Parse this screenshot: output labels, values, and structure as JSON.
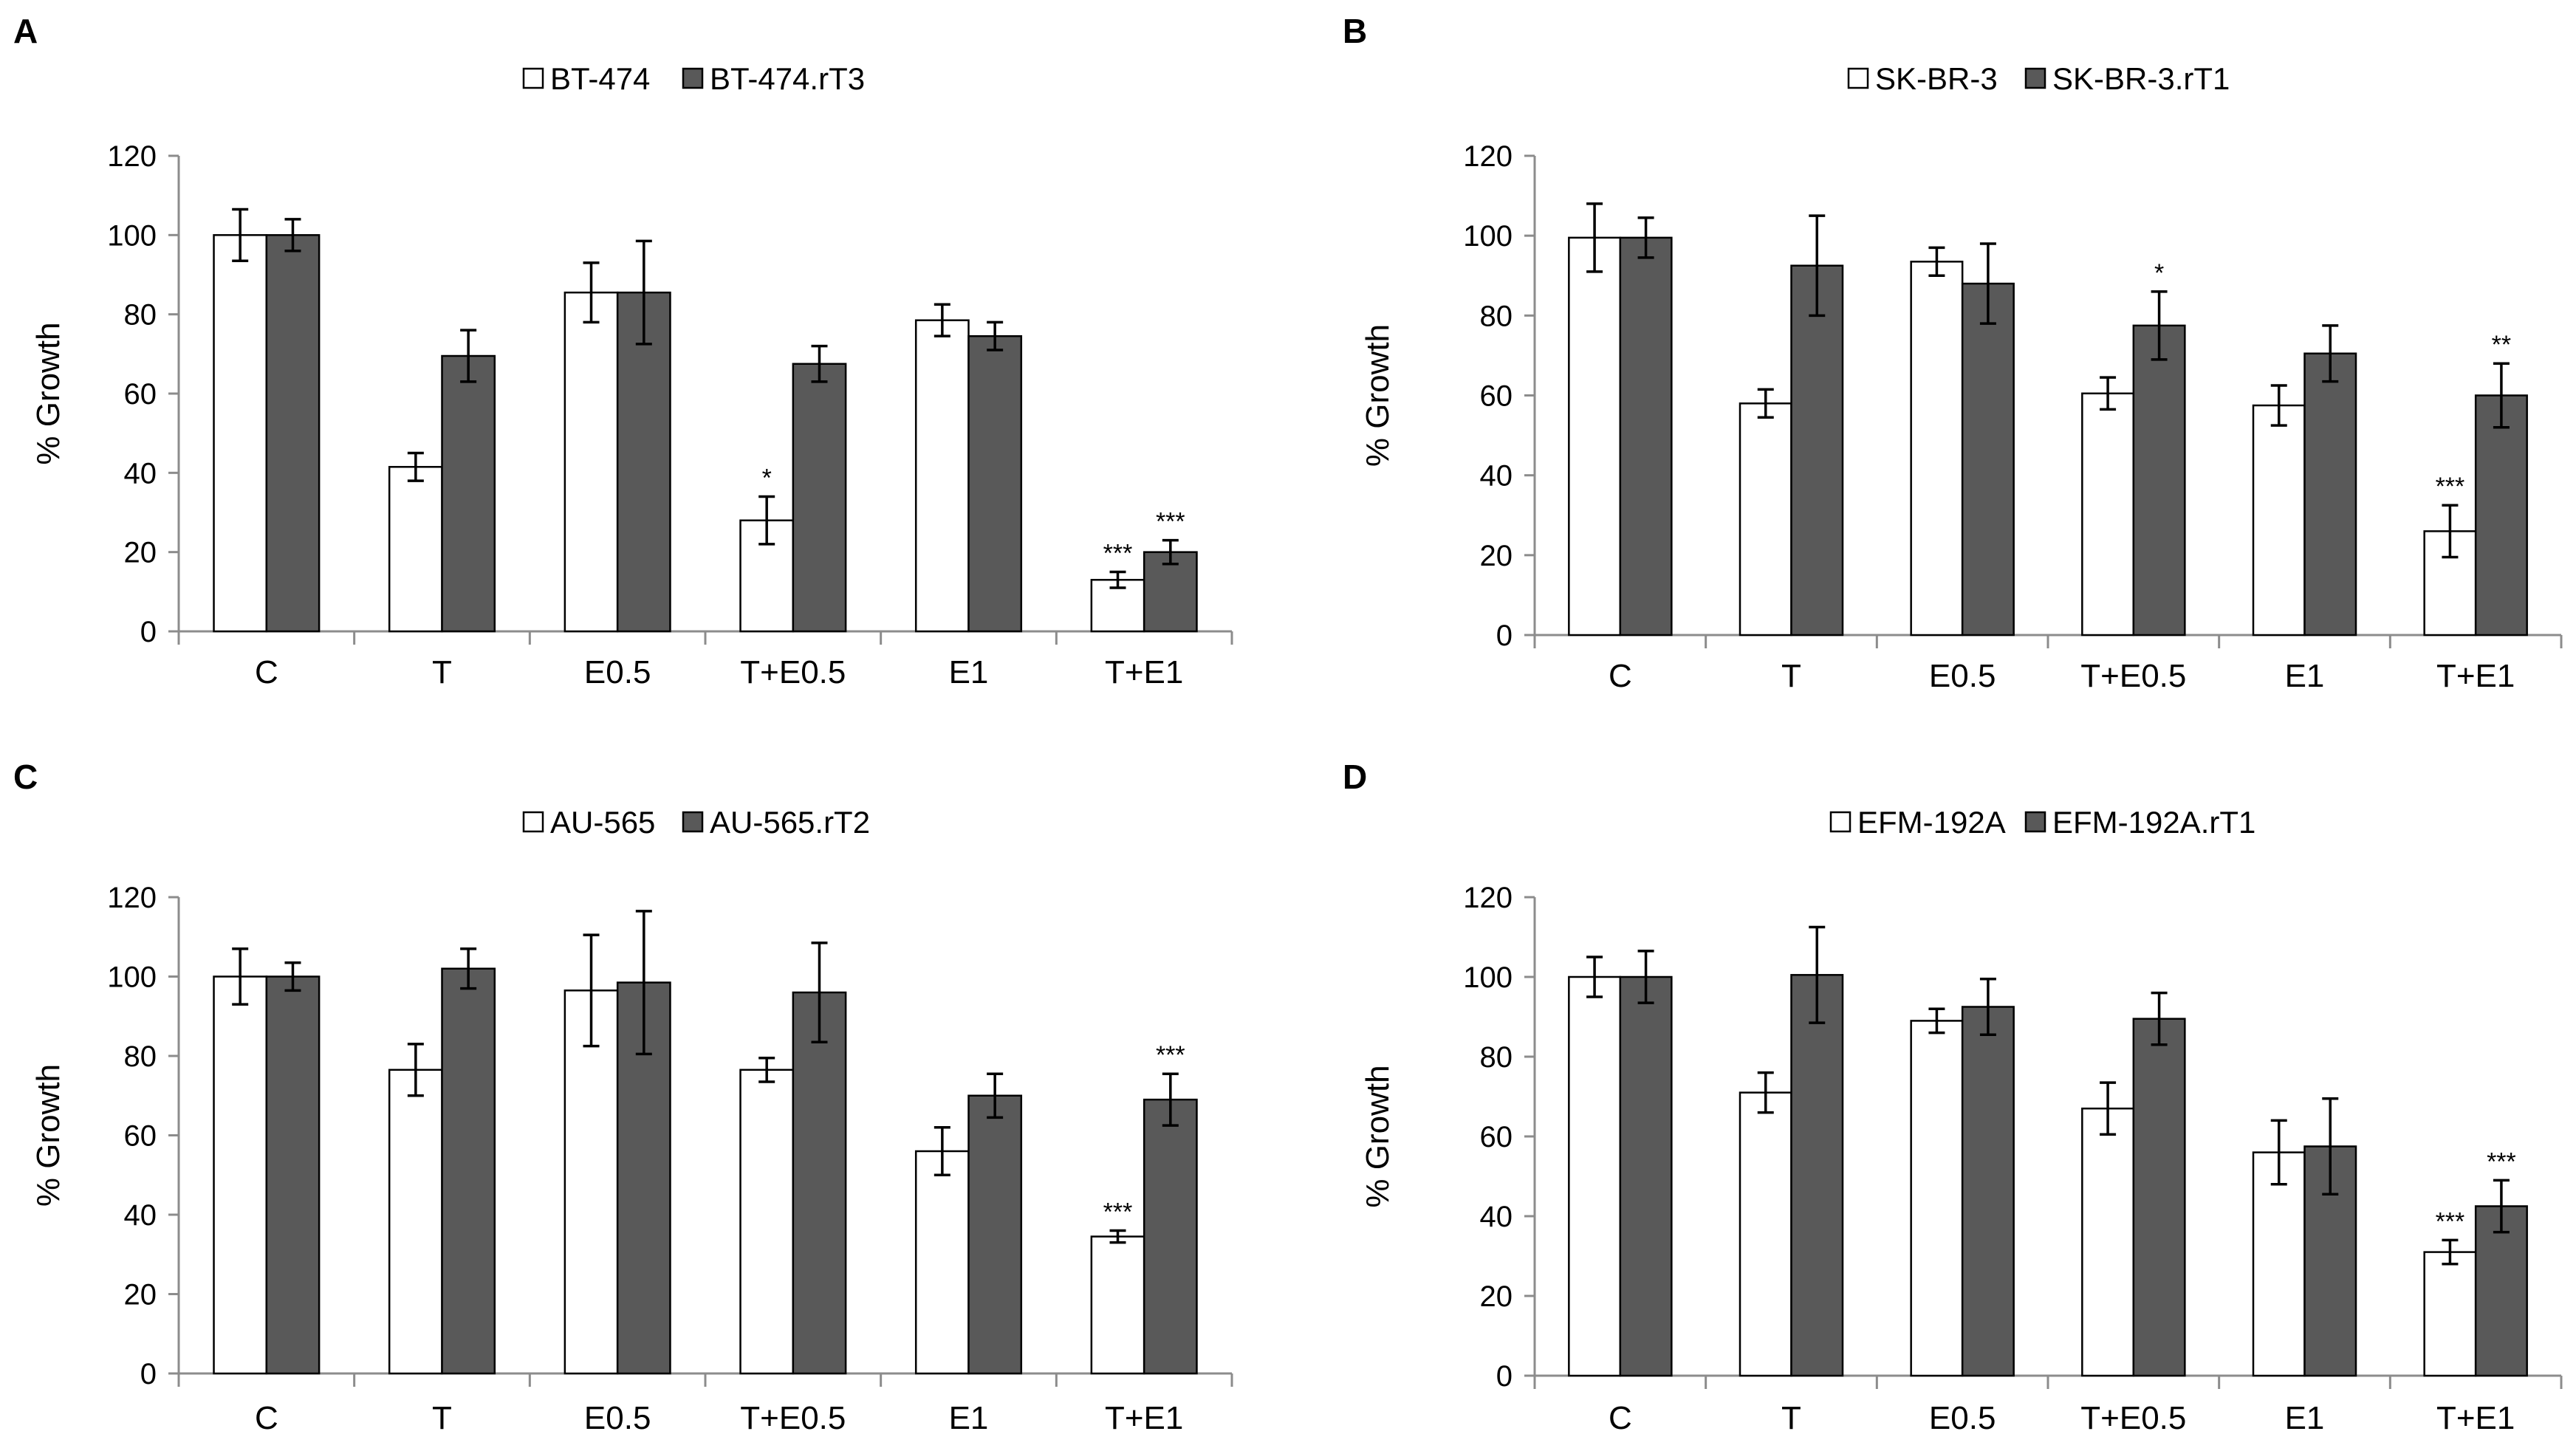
{
  "chart_data": [
    {
      "panel": "A",
      "type": "bar",
      "categories": [
        "C",
        "T",
        "E0.5",
        "T+E0.5",
        "E1",
        "T+E1"
      ],
      "ylabel": "% Growth",
      "xlabel": "",
      "ylim": [
        0,
        120
      ],
      "yticks": [
        "0",
        "20",
        "40",
        "60",
        "80",
        "100",
        "120"
      ],
      "legend_position": "top-center",
      "series": [
        {
          "name": "BT-474",
          "color": "#ffffff",
          "values": [
            100,
            41.5,
            85.5,
            28,
            78.5,
            13
          ],
          "errors": [
            6.5,
            3.5,
            7.5,
            6,
            4,
            2
          ],
          "annotations": [
            "",
            "",
            "",
            "*",
            "",
            "***"
          ]
        },
        {
          "name": "BT-474.rT3",
          "color": "#595959",
          "values": [
            100,
            69.5,
            85.5,
            67.5,
            74.5,
            20
          ],
          "errors": [
            4,
            6.5,
            13,
            4.5,
            3.5,
            3
          ],
          "annotations": [
            "",
            "",
            "",
            "",
            "",
            "***"
          ]
        }
      ]
    },
    {
      "panel": "B",
      "type": "bar",
      "categories": [
        "C",
        "T",
        "E0.5",
        "T+E0.5",
        "E1",
        "T+E1"
      ],
      "ylabel": "% Growth",
      "xlabel": "",
      "ylim": [
        0,
        120
      ],
      "yticks": [
        "0",
        "20",
        "40",
        "60",
        "80",
        "100",
        "120"
      ],
      "legend_position": "top-center",
      "series": [
        {
          "name": "SK-BR-3",
          "color": "#ffffff",
          "values": [
            99.5,
            58,
            93.5,
            60.5,
            57.5,
            26
          ],
          "errors": [
            8.5,
            3.5,
            3.5,
            4,
            5,
            6.5
          ],
          "annotations": [
            "",
            "",
            "",
            "",
            "",
            "***"
          ]
        },
        {
          "name": "SK-BR-3.rT1",
          "color": "#595959",
          "values": [
            99.5,
            92.5,
            88,
            77.5,
            70.5,
            60
          ],
          "errors": [
            5,
            12.5,
            10,
            8.5,
            7,
            8
          ],
          "annotations": [
            "",
            "",
            "",
            "*",
            "",
            "**"
          ]
        }
      ]
    },
    {
      "panel": "C",
      "type": "bar",
      "categories": [
        "C",
        "T",
        "E0.5",
        "T+E0.5",
        "E1",
        "T+E1"
      ],
      "ylabel": "% Growth",
      "xlabel": "",
      "ylim": [
        0,
        120
      ],
      "yticks": [
        "0",
        "20",
        "40",
        "60",
        "80",
        "100",
        "120"
      ],
      "legend_position": "top-center",
      "series": [
        {
          "name": "AU-565",
          "color": "#ffffff",
          "values": [
            100,
            76.5,
            96.5,
            76.5,
            56,
            34.5
          ],
          "errors": [
            7,
            6.5,
            14,
            3,
            6,
            1.5
          ],
          "annotations": [
            "",
            "",
            "",
            "",
            "",
            "***"
          ]
        },
        {
          "name": "AU-565.rT2",
          "color": "#595959",
          "values": [
            100,
            102,
            98.5,
            96,
            70,
            69
          ],
          "errors": [
            3.5,
            5,
            18,
            12.5,
            5.5,
            6.5
          ],
          "annotations": [
            "",
            "",
            "",
            "",
            "",
            "***"
          ]
        }
      ]
    },
    {
      "panel": "D",
      "type": "bar",
      "categories": [
        "C",
        "T",
        "E0.5",
        "T+E0.5",
        "E1",
        "T+E1"
      ],
      "ylabel": "% Growth",
      "xlabel": "",
      "ylim": [
        0,
        120
      ],
      "yticks": [
        "0",
        "20",
        "40",
        "60",
        "80",
        "100",
        "120"
      ],
      "legend_position": "top-center",
      "series": [
        {
          "name": "EFM-192A",
          "color": "#ffffff",
          "values": [
            100,
            71,
            89,
            67,
            56,
            31
          ],
          "errors": [
            5,
            5,
            3,
            6.5,
            8,
            3
          ],
          "annotations": [
            "",
            "",
            "",
            "",
            "",
            "***"
          ]
        },
        {
          "name": "EFM-192A.rT1",
          "color": "#595959",
          "values": [
            100,
            100.5,
            92.5,
            89.5,
            57.5,
            42.5
          ],
          "errors": [
            6.5,
            12,
            7,
            6.5,
            12,
            6.5
          ],
          "annotations": [
            "",
            "",
            "",
            "",
            "",
            "***"
          ]
        }
      ]
    }
  ]
}
